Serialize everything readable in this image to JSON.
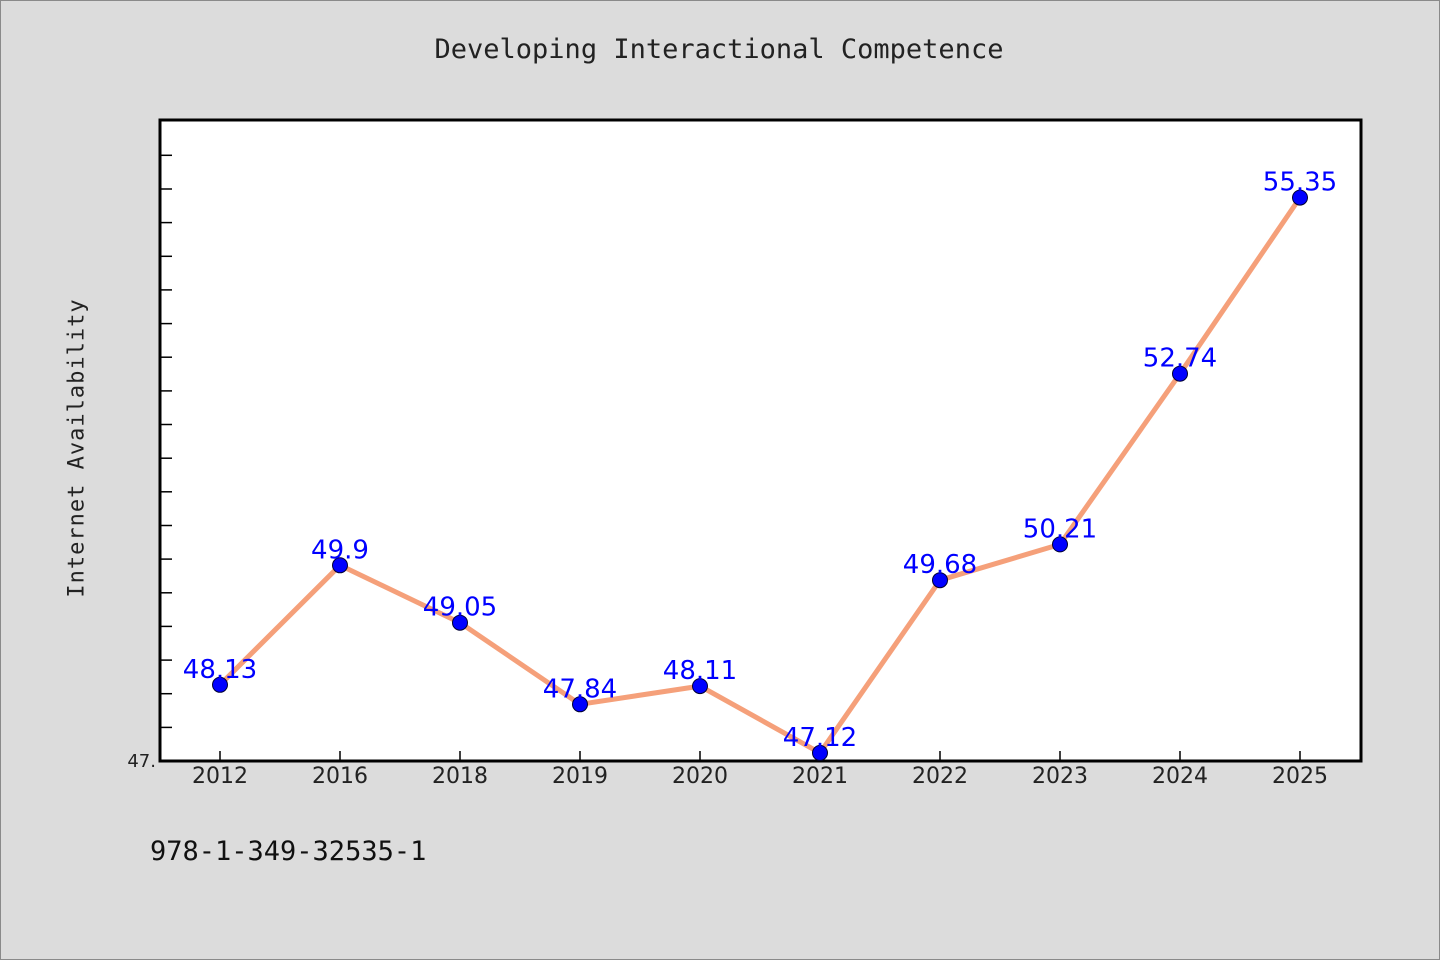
{
  "header": {
    "isbn": "978-1-349-32535-1"
  },
  "colors": {
    "line": "#f5a07a",
    "marker": "#0000ff",
    "label": "#0000ff",
    "plot_bg": "#ffffff",
    "page_bg": "#dcdcdc"
  },
  "chart_data": {
    "type": "line",
    "title": "Developing Interactional Competence",
    "xlabel": "",
    "ylabel": "Internet Availability",
    "categories": [
      "2012",
      "2016",
      "2018",
      "2019",
      "2020",
      "2021",
      "2022",
      "2023",
      "2024",
      "2025"
    ],
    "series": [
      {
        "values": [
          48.13,
          49.9,
          49.05,
          47.84,
          48.11,
          47.12,
          49.68,
          50.21,
          52.74,
          55.35
        ],
        "labels": [
          "48.13",
          "49.9",
          "49.05",
          "47.84",
          "48.11",
          "47.12",
          "49.68",
          "50.21",
          "52.74",
          "55.35"
        ]
      }
    ],
    "ylim": [
      47.0,
      56.5
    ],
    "y_tick_labels": [
      "47."
    ],
    "y_minor_tick_count": 19,
    "grid": false,
    "legend": "none",
    "markers": true
  }
}
